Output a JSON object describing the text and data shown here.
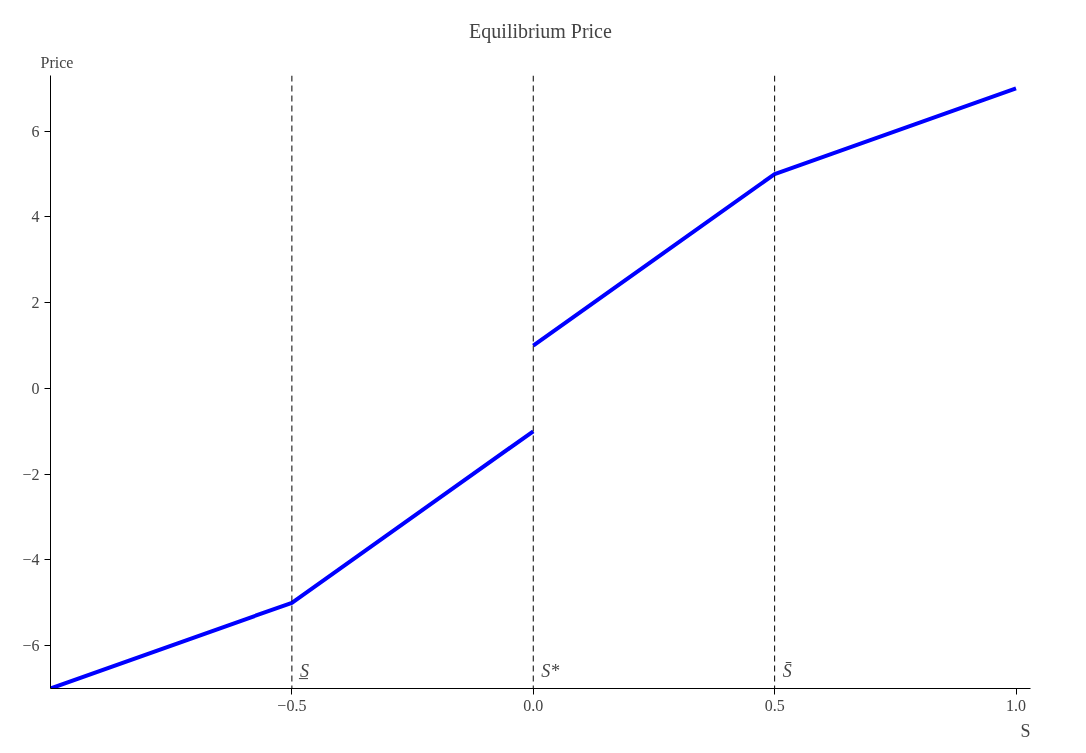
{
  "chart_data": {
    "type": "line",
    "title": "Equilibrium Price",
    "xlabel": "S",
    "ylabel": "Price",
    "x": [
      -1,
      -0.5,
      0,
      0,
      0.5,
      1
    ],
    "series": [
      {
        "color": "#0000ff",
        "values": [
          -7,
          -5,
          -1,
          null,
          null,
          null
        ]
      },
      {
        "color": "#0000ff",
        "values": [
          null,
          null,
          null,
          1,
          5,
          7
        ]
      }
    ],
    "xlim": [
      -1,
      1.03
    ],
    "ylim": [
      -7,
      7.3
    ],
    "xticks": [
      {
        "value": -0.5,
        "label": "−0.5"
      },
      {
        "value": 0,
        "label": "0.0"
      },
      {
        "value": 0.5,
        "label": "0.5"
      },
      {
        "value": 1,
        "label": "1.0"
      }
    ],
    "yticks": [
      {
        "value": -6,
        "label": "−6"
      },
      {
        "value": -4,
        "label": "−4"
      },
      {
        "value": -2,
        "label": "−2"
      },
      0,
      2,
      4,
      6
    ],
    "ref_lines": [
      {
        "axis": "x",
        "value": -0.5,
        "label": "S̲",
        "color": "#000000",
        "line_style": "dashed"
      },
      {
        "axis": "x",
        "value": 0,
        "label": "S*",
        "color": "#000000",
        "line_style": "dashed"
      },
      {
        "axis": "x",
        "value": 0.5,
        "label": "S̄",
        "color": "#000000",
        "line_style": "dashed"
      }
    ],
    "grid": false,
    "marker": "none",
    "line_style": "solid"
  }
}
